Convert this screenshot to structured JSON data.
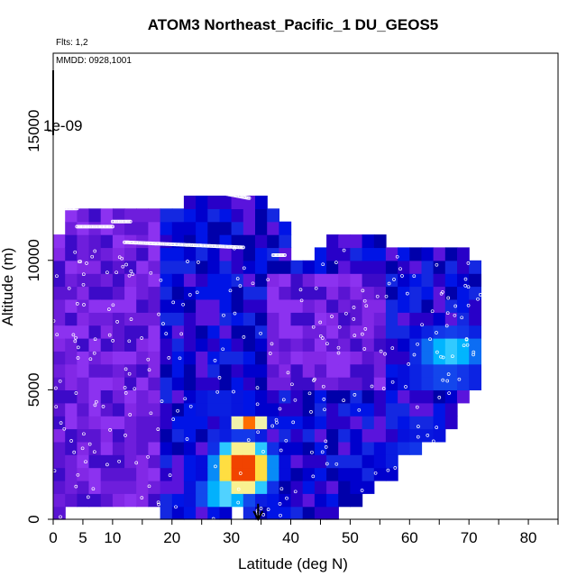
{
  "chart_data": {
    "type": "heatmap",
    "title": "ATOM3 Northeast_Pacific_1 DU_GEOS5",
    "flights_label": "Flts: 1,2",
    "dates_label": "MMDD: 0928,1001",
    "colorbar_label": "1e-09",
    "xlabel": "Latitude (deg N)",
    "ylabel": "Altitude (m)",
    "xlim": [
      0,
      85
    ],
    "ylim": [
      0,
      18000
    ],
    "x_ticks": [
      0,
      5,
      10,
      20,
      30,
      40,
      50,
      60,
      70,
      80
    ],
    "x_minor_ticks": [
      15,
      25,
      35,
      45,
      55,
      65,
      75,
      85
    ],
    "y_ticks": [
      0,
      5000,
      10000,
      15000
    ],
    "column_width_deg": 2,
    "row_height_m": 500,
    "column_ranges": [
      [
        0,
        11000
      ],
      [
        500,
        12000
      ],
      [
        500,
        12000
      ],
      [
        500,
        12000
      ],
      [
        500,
        12000
      ],
      [
        500,
        12000
      ],
      [
        500,
        12000
      ],
      [
        500,
        12000
      ],
      [
        500,
        12000
      ],
      [
        0,
        12000
      ],
      [
        0,
        12000
      ],
      [
        0,
        12500
      ],
      [
        0,
        12500
      ],
      [
        0,
        12500
      ],
      [
        0,
        12500
      ],
      [
        500,
        12500
      ],
      [
        0,
        12500
      ],
      [
        0,
        12500
      ],
      [
        0,
        12000
      ],
      [
        0,
        11500
      ],
      [
        0,
        10000
      ],
      [
        0,
        10000
      ],
      [
        0,
        10500
      ],
      [
        0,
        11000
      ],
      [
        500,
        11000
      ],
      [
        500,
        11000
      ],
      [
        1000,
        11000
      ],
      [
        1500,
        11000
      ],
      [
        1500,
        10500
      ],
      [
        2500,
        10500
      ],
      [
        2500,
        10500
      ],
      [
        3000,
        10500
      ],
      [
        3000,
        10500
      ],
      [
        3500,
        10500
      ],
      [
        4500,
        10500
      ],
      [
        5000,
        10000
      ]
    ],
    "hotspots": [
      {
        "lat": 32,
        "alt": 2000,
        "value": 1.0,
        "lat_spread": 3.5,
        "alt_spread": 750
      },
      {
        "lat": 29,
        "alt": 1000,
        "value": 0.65,
        "lat_spread": 4,
        "alt_spread": 280
      },
      {
        "lat": 33,
        "alt": 3750,
        "value": 0.85,
        "lat_spread": 2.2,
        "alt_spread": 240
      },
      {
        "lat": 28,
        "alt": 4500,
        "value": 0.3,
        "lat_spread": 5,
        "alt_spread": 250
      },
      {
        "lat": 67,
        "alt": 6500,
        "value": 0.45,
        "lat_spread": 5,
        "alt_spread": 700
      },
      {
        "lat": 66,
        "alt": 5500,
        "value": 0.3,
        "lat_spread": 6,
        "alt_spread": 500
      },
      {
        "lat": 62,
        "alt": 2500,
        "value": 0.25,
        "lat_spread": 6,
        "alt_spread": 800
      }
    ],
    "flight_segments": [
      {
        "lat": [
          10,
          13
        ],
        "alt": [
          11500,
          11500
        ]
      },
      {
        "lat": [
          1,
          4
        ],
        "alt": [
          12000,
          12000
        ]
      },
      {
        "lat": [
          4,
          10
        ],
        "alt": [
          11300,
          11300
        ]
      },
      {
        "lat": [
          12,
          32
        ],
        "alt": [
          10700,
          10500
        ]
      },
      {
        "lat": [
          20,
          22
        ],
        "alt": [
          12800,
          12800
        ]
      },
      {
        "lat": [
          26,
          33
        ],
        "alt": [
          12700,
          12400
        ]
      },
      {
        "lat": [
          37,
          39
        ],
        "alt": [
          10200,
          10200
        ]
      },
      {
        "lat": [
          46,
          51
        ],
        "alt": [
          11300,
          11300
        ]
      },
      {
        "lat": [
          57,
          70
        ],
        "alt": [
          11100,
          10900
        ]
      }
    ],
    "marker": {
      "lat": 34.5,
      "alt_from": 600,
      "alt_to": 0
    }
  }
}
